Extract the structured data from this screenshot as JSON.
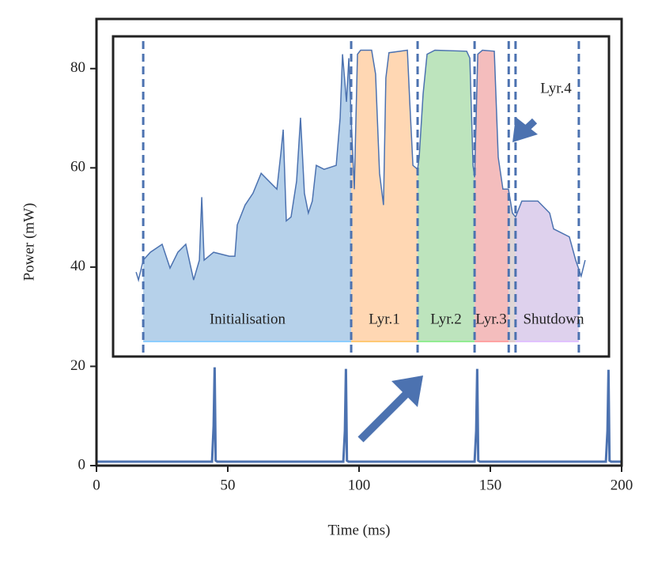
{
  "chart_data": {
    "type": "line",
    "xlabel": "Time (ms)",
    "ylabel": "Power (mW)",
    "xlim": [
      0,
      200
    ],
    "ylim": [
      0,
      90
    ],
    "xticks": [
      0,
      50,
      100,
      150,
      200
    ],
    "yticks": [
      0,
      20,
      40,
      60,
      80
    ],
    "series": [
      {
        "color": "#4c72b0",
        "x": [
          0,
          44,
          44.6,
          45,
          45.4,
          46,
          94,
          94.6,
          95,
          95.4,
          96,
          144,
          144.6,
          145,
          145.4,
          146,
          194,
          194.6,
          195,
          195.4,
          196,
          200
        ],
        "values": [
          0.8,
          0.8,
          8,
          19.8,
          1,
          0.8,
          0.8,
          7,
          19.5,
          1,
          0.8,
          0.8,
          7,
          19.5,
          1,
          0.8,
          0.8,
          7,
          19.3,
          1,
          0.8,
          0.8
        ]
      }
    ],
    "inset": {
      "color": "#4c72b0",
      "fill_base": 25,
      "x": [
        15.1,
        16,
        17.8,
        20.5,
        25,
        28,
        31,
        34,
        37,
        39.2,
        40.1,
        41,
        44.6,
        50.6,
        52.7,
        53.6,
        56.6,
        59.6,
        62.7,
        67.2,
        68.7,
        70.2,
        71.1,
        72.3,
        74.1,
        76.2,
        77.7,
        79.2,
        80.7,
        82.2,
        83.7,
        86.7,
        91.3,
        92.8,
        93.7,
        95.2,
        96.1,
        97,
        98.2,
        99.4,
        100.6,
        104.8,
        106.3,
        107.8,
        109.3,
        110.2,
        111.4,
        118.4,
        119.3,
        120.5,
        122.3,
        122.9,
        124.4,
        125.9,
        128.9,
        141,
        142.2,
        143.4,
        144,
        145.2,
        147,
        151.5,
        153,
        154.8,
        156.9,
        158.4,
        159.6,
        162,
        168.1,
        172.6,
        174.1,
        180.1,
        182.5,
        184.6,
        186.1
      ],
      "values": [
        39,
        37.4,
        41.4,
        43,
        44.6,
        39.8,
        43,
        44.6,
        37.4,
        41.4,
        54.1,
        41.4,
        43,
        42.2,
        42.2,
        48.5,
        52.5,
        54.9,
        58.9,
        56.5,
        55.7,
        62.9,
        67.7,
        49.3,
        50.1,
        57.3,
        70.1,
        54.9,
        50.9,
        53.3,
        60.5,
        59.7,
        60.5,
        70.1,
        82.9,
        73.3,
        82.1,
        70.1,
        55.7,
        82.9,
        83.7,
        83.7,
        78.9,
        58.9,
        52.5,
        78.1,
        83.2,
        83.7,
        73.3,
        60.5,
        59.7,
        62.1,
        74.9,
        82.9,
        83.7,
        83.5,
        82.1,
        60.5,
        58.1,
        82.9,
        83.7,
        83.5,
        62.1,
        55.7,
        55.7,
        50.9,
        50.1,
        53.3,
        53.3,
        50.9,
        47.7,
        46.1,
        41.4,
        38.2,
        41.4
      ],
      "vlines": [
        17.8,
        97,
        122.3,
        144,
        157,
        159.6,
        183.7
      ],
      "regions": [
        {
          "label": "Initialisation",
          "start": 17.8,
          "end": 97,
          "color": "#a9c9e6"
        },
        {
          "label": "Lyr.1",
          "start": 97,
          "end": 122.3,
          "color": "#ffd0a6"
        },
        {
          "label": "Lyr.2",
          "start": 122.3,
          "end": 144,
          "color": "#b2dfb2"
        },
        {
          "label": "Lyr.3",
          "start": 144,
          "end": 157,
          "color": "#f2b1b1"
        },
        {
          "label": "Lyr.4",
          "start": 157,
          "end": 159.6,
          "color": "#d9cfcf"
        },
        {
          "label": "Shutdown",
          "start": 159.6,
          "end": 183.7,
          "color": "#d8c9ea"
        }
      ]
    }
  }
}
